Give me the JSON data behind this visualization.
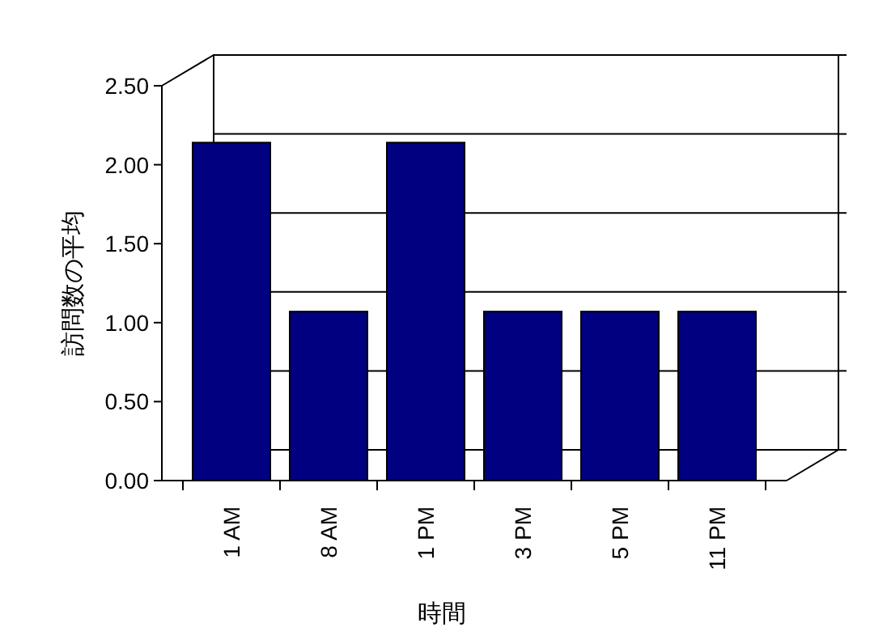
{
  "chart_data": {
    "type": "bar",
    "xlabel": "時間",
    "ylabel": "訪問数の平均",
    "categories": [
      "1 AM",
      "8 AM",
      "1 PM",
      "3 PM",
      "5 PM",
      "11 PM"
    ],
    "values": [
      2.14,
      1.07,
      2.14,
      1.07,
      1.07,
      1.07
    ],
    "color": "#000080",
    "ylim": [
      0,
      2.5
    ],
    "yticks": [
      {
        "value": 0,
        "label": "0.00"
      },
      {
        "value": 0.5,
        "label": "0.50"
      },
      {
        "value": 1,
        "label": "1.00"
      },
      {
        "value": 1.5,
        "label": "1.50"
      },
      {
        "value": 2,
        "label": "2.00"
      },
      {
        "value": 2.5,
        "label": "2.50"
      }
    ],
    "grid": "y"
  }
}
